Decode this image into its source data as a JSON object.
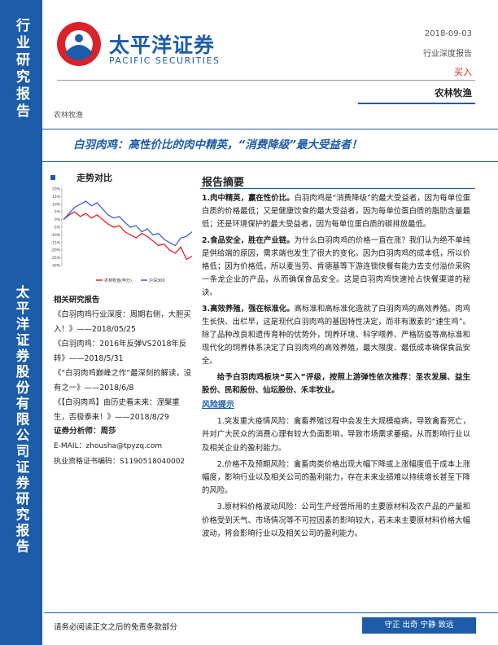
{
  "sidebar": {
    "top": "行业研究报告",
    "bottom": "太平洋证券股份有限公司证券研究报告"
  },
  "header": {
    "brand_cn": "太平洋证券",
    "brand_en": "PACIFIC SECURITIES",
    "date": "2018-09-03",
    "report_type": "行业深度报告",
    "rating": "买入",
    "industry": "农林牧渔"
  },
  "sector_tag": "农林牧渔",
  "title": "白羽肉鸡：高性价比的肉中精英，“消费降级”最大受益者！",
  "chart_data": {
    "type": "line",
    "title": "走势对比",
    "ylim": [
      -30,
      20
    ],
    "yticks": [
      {
        "value": 20,
        "label": "20%"
      },
      {
        "value": 15,
        "label": "15%"
      },
      {
        "value": 10,
        "label": "10%"
      },
      {
        "value": 5,
        "label": "5%"
      },
      {
        "value": 0,
        "label": "0%"
      },
      {
        "value": -5,
        "label": "-5%"
      },
      {
        "value": -10,
        "label": "-10%"
      },
      {
        "value": -15,
        "label": "-15%"
      },
      {
        "value": -20,
        "label": "-20%"
      },
      {
        "value": -25,
        "label": "-25%"
      },
      {
        "value": -30,
        "label": "-30%"
      }
    ],
    "series": [
      {
        "name": "农林牧渔(申万)",
        "color": "#e8202a",
        "values": [
          0,
          3,
          5,
          2,
          4,
          1,
          3,
          0,
          -3,
          -5,
          -4,
          -8,
          -10,
          -12,
          -9,
          -11,
          -14,
          -17,
          -16,
          -20,
          -22,
          -18,
          -26,
          -24
        ]
      },
      {
        "name": "沪深300",
        "color": "#3a5fd8",
        "values": [
          0,
          4,
          8,
          10,
          12,
          9,
          11,
          7,
          3,
          1,
          2,
          -2,
          -5,
          -4,
          -8,
          -6,
          -10,
          -9,
          -13,
          -15,
          -17,
          -12,
          -11,
          -8
        ]
      }
    ]
  },
  "related": {
    "heading": "相关研究报告",
    "items": [
      "《白羽肉鸡行业深度：周期右侧，大胆买入！》——2018/05/25",
      "《白羽肉鸡：2016年反弹VS2018年反转》——2018/5/31",
      "《“白羽肉鸡巅峰之作”最深刻的解读，没有之一》——2018/6/8",
      "《【白羽肉鸡】由历史看未来：涅槃重生，否极泰来！》——2018/8/29"
    ]
  },
  "analyst": {
    "name": "证券分析师：周莎",
    "email": "E-MAIL：zhousha@tpyzq.com",
    "license": "执业资格证书编码：S1190518040002"
  },
  "summary": {
    "heading": "报告摘要",
    "points": [
      {
        "lead": "1.肉中精英，赢在性价比。",
        "text": "白羽肉鸡是“消费降级”的最大受益者，因为每单位蛋白质的价格最低；又是健康饮食的最大受益者，因为每单位蛋白质的脂肪含量最低；还是环境保护的最大受益者，因为每单位蛋白质的碳排放最低。"
      },
      {
        "lead": "2.食品安全，胜在产业链。",
        "text": "为什么白羽肉鸡的价格一直在涨？我们认为绝不单纯是供给端的原因，需求端也发生了很大的变化。因为白羽肉鸡的成本低，所以价格低；因为价格低，所以麦当劳、肯德基等下游连锁快餐有能力去支付溢价采购一条龙企业的产品，从而确保食品安全。这是白羽肉鸡快速抢占快餐渠道的秘诀。"
      },
      {
        "lead": "3.高效养殖，强在标准化。",
        "text": "高标准和高标准化造就了白羽肉鸡的高效养殖。肉鸡生长快、出栏早，这是现代白羽肉鸡的基因特性决定，而非有激素的“速生鸡”。除了品种改良和遗传育种的优势外，饲养环境、科学喂养、严格防疫等高标准和现代化的饲养体系决定了白羽肉鸡的高效养殖，最大限度、最低成本确保食品安全。"
      }
    ],
    "recommendation": "给予白羽肉鸡板块“买入”评级，按照上游弹性依次推荐：圣农发展、益生股份、民和股份、仙坛股份、禾丰牧业。"
  },
  "risks": {
    "heading": "风险提示",
    "items": [
      "1.突发重大疫情风险：禽畜养殖过程中会发生大规模疫病，导致禽畜死亡，并对广大民众的消费心理有较大负面影响，导致市场需求萎缩，从而影响行业以及相关企业的盈利能力。",
      "2.价格不及预期风险：禽畜肉类价格出现大幅下降或上涨幅度低于成本上涨幅度，影响行业以及相关公司的盈利能力，存在未来业绩难以持续增长甚至下降的风险。",
      "3.原材料价格波动风险：公司生产经营所用的主要原材料及农产品的产量和价格受到天气、市场情况等不可控因素的影响较大，若未来主要原材料价格大幅波动，将会影响行业以及相关公司的盈利能力。"
    ]
  },
  "footer": {
    "disclaimer": "请务必阅读正文之后的免责条款部分",
    "motto": "守正 出奇 宁静 致远"
  }
}
